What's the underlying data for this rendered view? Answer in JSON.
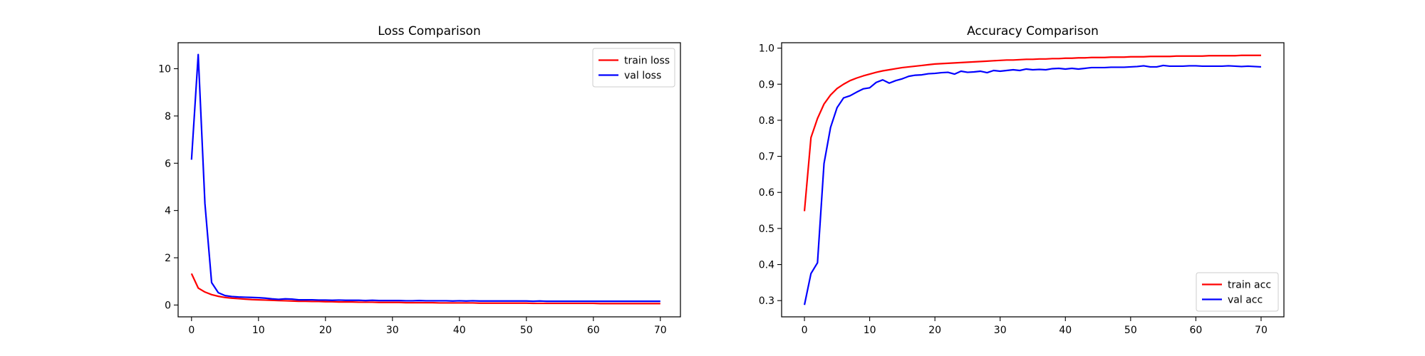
{
  "chart_data": [
    {
      "type": "line",
      "title": "Loss Comparison",
      "xlabel": "",
      "ylabel": "",
      "xlim": [
        -2,
        73
      ],
      "ylim": [
        -0.5,
        11.1
      ],
      "xticks": [
        0,
        10,
        20,
        30,
        40,
        50,
        60,
        70
      ],
      "yticks": [
        0,
        2,
        4,
        6,
        8,
        10
      ],
      "legend_position": "upper-right",
      "x": [
        0,
        1,
        2,
        3,
        4,
        5,
        6,
        7,
        8,
        9,
        10,
        11,
        12,
        13,
        14,
        15,
        16,
        17,
        18,
        19,
        20,
        21,
        22,
        23,
        24,
        25,
        26,
        27,
        28,
        29,
        30,
        31,
        32,
        33,
        34,
        35,
        36,
        37,
        38,
        39,
        40,
        41,
        42,
        43,
        44,
        45,
        46,
        47,
        48,
        49,
        50,
        51,
        52,
        53,
        54,
        55,
        56,
        57,
        58,
        59,
        60,
        61,
        62,
        63,
        64,
        65,
        66,
        67,
        68,
        69,
        70
      ],
      "series": [
        {
          "name": "train loss",
          "color": "#ff0000",
          "values": [
            1.33,
            0.72,
            0.55,
            0.44,
            0.37,
            0.32,
            0.29,
            0.27,
            0.25,
            0.23,
            0.22,
            0.21,
            0.2,
            0.19,
            0.18,
            0.17,
            0.16,
            0.16,
            0.15,
            0.15,
            0.14,
            0.14,
            0.13,
            0.13,
            0.13,
            0.12,
            0.12,
            0.12,
            0.11,
            0.11,
            0.11,
            0.11,
            0.1,
            0.1,
            0.1,
            0.1,
            0.1,
            0.09,
            0.09,
            0.09,
            0.09,
            0.09,
            0.09,
            0.08,
            0.08,
            0.08,
            0.08,
            0.08,
            0.08,
            0.08,
            0.08,
            0.07,
            0.07,
            0.07,
            0.07,
            0.07,
            0.07,
            0.07,
            0.07,
            0.07,
            0.07,
            0.06,
            0.06,
            0.06,
            0.06,
            0.06,
            0.06,
            0.06,
            0.06,
            0.06,
            0.06
          ]
        },
        {
          "name": "val loss",
          "color": "#0000ff",
          "values": [
            6.15,
            10.6,
            4.3,
            0.95,
            0.52,
            0.4,
            0.36,
            0.34,
            0.33,
            0.32,
            0.31,
            0.29,
            0.26,
            0.24,
            0.26,
            0.25,
            0.22,
            0.22,
            0.22,
            0.21,
            0.21,
            0.2,
            0.21,
            0.2,
            0.2,
            0.2,
            0.19,
            0.2,
            0.19,
            0.19,
            0.19,
            0.19,
            0.18,
            0.18,
            0.19,
            0.18,
            0.18,
            0.18,
            0.18,
            0.17,
            0.18,
            0.17,
            0.18,
            0.17,
            0.17,
            0.17,
            0.17,
            0.17,
            0.17,
            0.17,
            0.17,
            0.16,
            0.17,
            0.16,
            0.16,
            0.16,
            0.16,
            0.16,
            0.16,
            0.16,
            0.16,
            0.16,
            0.16,
            0.16,
            0.16,
            0.16,
            0.16,
            0.16,
            0.16,
            0.16,
            0.16
          ]
        }
      ]
    },
    {
      "type": "line",
      "title": "Accuracy Comparison",
      "xlabel": "",
      "ylabel": "",
      "xlim": [
        -3.5,
        73.5
      ],
      "ylim": [
        0.255,
        1.015
      ],
      "xticks": [
        0,
        10,
        20,
        30,
        40,
        50,
        60,
        70
      ],
      "yticks": [
        0.3,
        0.4,
        0.5,
        0.6,
        0.7,
        0.8,
        0.9,
        1.0
      ],
      "ytick_labels": [
        "0.3",
        "0.4",
        "0.5",
        "0.6",
        "0.7",
        "0.8",
        "0.9",
        "1.0"
      ],
      "legend_position": "lower-right",
      "x": [
        0,
        1,
        2,
        3,
        4,
        5,
        6,
        7,
        8,
        9,
        10,
        11,
        12,
        13,
        14,
        15,
        16,
        17,
        18,
        19,
        20,
        21,
        22,
        23,
        24,
        25,
        26,
        27,
        28,
        29,
        30,
        31,
        32,
        33,
        34,
        35,
        36,
        37,
        38,
        39,
        40,
        41,
        42,
        43,
        44,
        45,
        46,
        47,
        48,
        49,
        50,
        51,
        52,
        53,
        54,
        55,
        56,
        57,
        58,
        59,
        60,
        61,
        62,
        63,
        64,
        65,
        66,
        67,
        68,
        69,
        70
      ],
      "series": [
        {
          "name": "train acc",
          "color": "#ff0000",
          "values": [
            0.548,
            0.752,
            0.805,
            0.845,
            0.87,
            0.888,
            0.9,
            0.91,
            0.917,
            0.923,
            0.928,
            0.933,
            0.937,
            0.94,
            0.943,
            0.946,
            0.948,
            0.95,
            0.952,
            0.954,
            0.956,
            0.957,
            0.958,
            0.959,
            0.96,
            0.961,
            0.962,
            0.963,
            0.964,
            0.965,
            0.966,
            0.967,
            0.967,
            0.968,
            0.969,
            0.969,
            0.97,
            0.97,
            0.971,
            0.971,
            0.972,
            0.972,
            0.973,
            0.973,
            0.974,
            0.974,
            0.974,
            0.975,
            0.975,
            0.975,
            0.976,
            0.976,
            0.976,
            0.977,
            0.977,
            0.977,
            0.977,
            0.978,
            0.978,
            0.978,
            0.978,
            0.978,
            0.979,
            0.979,
            0.979,
            0.979,
            0.979,
            0.98,
            0.98,
            0.98,
            0.98
          ]
        },
        {
          "name": "val acc",
          "color": "#0000ff",
          "values": [
            0.288,
            0.375,
            0.405,
            0.68,
            0.78,
            0.835,
            0.862,
            0.868,
            0.878,
            0.887,
            0.89,
            0.905,
            0.912,
            0.903,
            0.91,
            0.915,
            0.922,
            0.925,
            0.926,
            0.929,
            0.93,
            0.932,
            0.933,
            0.928,
            0.936,
            0.933,
            0.934,
            0.936,
            0.932,
            0.938,
            0.936,
            0.938,
            0.94,
            0.938,
            0.942,
            0.94,
            0.941,
            0.94,
            0.943,
            0.944,
            0.942,
            0.944,
            0.942,
            0.944,
            0.946,
            0.946,
            0.946,
            0.947,
            0.947,
            0.947,
            0.948,
            0.949,
            0.951,
            0.948,
            0.948,
            0.952,
            0.95,
            0.95,
            0.95,
            0.951,
            0.951,
            0.95,
            0.95,
            0.95,
            0.95,
            0.951,
            0.95,
            0.949,
            0.95,
            0.949,
            0.948
          ]
        }
      ]
    }
  ]
}
